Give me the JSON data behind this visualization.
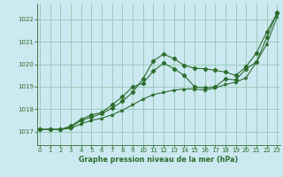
{
  "title": "Graphe pression niveau de la mer (hPa)",
  "bg_color": "#cce8f0",
  "grid_color": "#99ccbb",
  "line_color": "#2d6e2d",
  "xlim": [
    -0.3,
    23.3
  ],
  "ylim": [
    1016.4,
    1022.7
  ],
  "yticks": [
    1017,
    1018,
    1019,
    1020,
    1021,
    1022
  ],
  "xticks": [
    0,
    1,
    2,
    3,
    4,
    5,
    6,
    7,
    8,
    9,
    10,
    11,
    12,
    13,
    14,
    15,
    16,
    17,
    18,
    19,
    20,
    21,
    22,
    23
  ],
  "line1": [
    1017.1,
    1017.1,
    1017.1,
    1017.15,
    1017.35,
    1017.5,
    1017.6,
    1017.75,
    1017.95,
    1018.2,
    1018.45,
    1018.65,
    1018.75,
    1018.85,
    1018.9,
    1018.9,
    1018.85,
    1018.95,
    1019.1,
    1019.2,
    1019.4,
    1020.1,
    1020.9,
    1022.1
  ],
  "line2": [
    1017.1,
    1017.1,
    1017.1,
    1017.2,
    1017.5,
    1017.65,
    1017.8,
    1018.05,
    1018.35,
    1018.75,
    1019.35,
    1020.15,
    1020.45,
    1020.25,
    1019.95,
    1019.82,
    1019.8,
    1019.73,
    1019.65,
    1019.5,
    1019.9,
    1020.5,
    1021.45,
    1022.25
  ],
  "line3": [
    1017.1,
    1017.1,
    1017.1,
    1017.25,
    1017.55,
    1017.75,
    1017.85,
    1018.2,
    1018.55,
    1019.0,
    1019.15,
    1019.7,
    1020.05,
    1019.8,
    1019.5,
    1019.0,
    1018.95,
    1019.0,
    1019.35,
    1019.3,
    1019.8,
    1020.1,
    1021.2,
    1022.3
  ]
}
